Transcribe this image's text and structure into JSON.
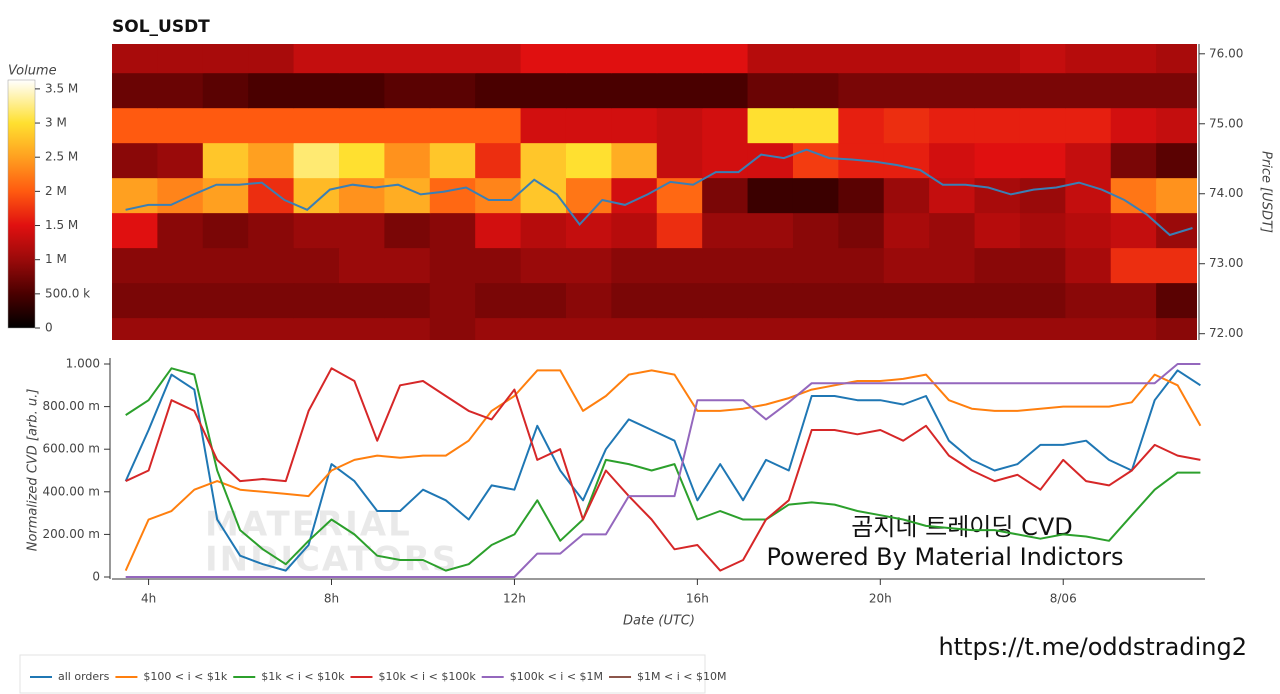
{
  "chart_data": [
    {
      "type": "heatmap",
      "title": "SOL_USDT",
      "ylabel": "Price [USDT]",
      "colorbar_title": "Volume",
      "xlim": [
        3.2,
        27.1
      ],
      "ylim": [
        71.91,
        76.14
      ],
      "yticks": [
        {
          "value": 72,
          "label": "72.00"
        },
        {
          "value": 73,
          "label": "73.00"
        },
        {
          "value": 74,
          "label": "74.00"
        },
        {
          "value": 75,
          "label": "75.00"
        },
        {
          "value": 76,
          "label": "76.00"
        }
      ],
      "x_bins": [
        3.2,
        4.2,
        5.2,
        6.2,
        7.2,
        8.2,
        9.2,
        10.2,
        11.2,
        12.2,
        13.2,
        14.2,
        15.2,
        16.2,
        17.2,
        18.2,
        19.2,
        20.2,
        21.2,
        22.2,
        23.2,
        24.2,
        25.2,
        26.2,
        27.2
      ],
      "y_bins": [
        71.73,
        72.23,
        72.73,
        73.23,
        73.73,
        74.23,
        74.73,
        75.23,
        75.73,
        76.23
      ],
      "z": [
        [
          1.0,
          1.0,
          1.0,
          1.0,
          1.0,
          1.0,
          1.0,
          0.9,
          1.0,
          1.0,
          1.0,
          1.0,
          1.0,
          1.0,
          1.0,
          1.0,
          1.0,
          1.0,
          1.0,
          1.0,
          1.0,
          1.0,
          1.0,
          0.9
        ],
        [
          0.8,
          0.8,
          0.8,
          0.8,
          0.8,
          0.8,
          0.8,
          0.9,
          0.8,
          0.8,
          0.9,
          0.8,
          0.8,
          0.8,
          0.8,
          0.8,
          0.8,
          0.8,
          0.8,
          0.8,
          0.8,
          0.9,
          0.9,
          0.6
        ],
        [
          0.9,
          0.9,
          0.9,
          0.9,
          0.9,
          1.0,
          1.0,
          0.9,
          0.9,
          1.0,
          1.0,
          0.9,
          0.9,
          0.9,
          0.9,
          0.9,
          0.9,
          1.0,
          1.0,
          0.9,
          0.9,
          1.1,
          1.7,
          1.7
        ],
        [
          1.5,
          0.9,
          0.8,
          0.9,
          1.0,
          1.0,
          0.8,
          0.9,
          1.4,
          1.2,
          1.3,
          1.2,
          1.7,
          1.0,
          1.0,
          0.9,
          0.8,
          1.1,
          1.0,
          1.2,
          1.1,
          1.2,
          1.3,
          1.0
        ],
        [
          2.5,
          2.3,
          2.5,
          1.7,
          2.7,
          2.4,
          2.6,
          2.1,
          2.3,
          2.8,
          2.2,
          1.4,
          2.1,
          0.8,
          0.4,
          0.4,
          0.6,
          1.0,
          1.3,
          1.1,
          1.0,
          1.3,
          2.2,
          2.4
        ],
        [
          0.9,
          1.0,
          2.8,
          2.5,
          3.2,
          3.0,
          2.4,
          2.8,
          1.7,
          2.8,
          3.0,
          2.6,
          1.3,
          1.4,
          1.4,
          1.8,
          1.6,
          1.6,
          1.4,
          1.5,
          1.5,
          1.3,
          0.8,
          0.6
        ],
        [
          2.0,
          2.0,
          2.0,
          2.0,
          2.0,
          2.0,
          2.0,
          2.0,
          2.0,
          1.4,
          1.4,
          1.4,
          1.3,
          1.4,
          3.0,
          3.0,
          1.6,
          1.7,
          1.6,
          1.6,
          1.6,
          1.6,
          1.4,
          1.3
        ],
        [
          0.7,
          0.7,
          0.6,
          0.5,
          0.5,
          0.5,
          0.6,
          0.6,
          0.5,
          0.5,
          0.5,
          0.5,
          0.5,
          0.5,
          0.7,
          0.7,
          0.8,
          0.8,
          0.8,
          0.8,
          0.8,
          0.8,
          0.8,
          0.8
        ],
        [
          1.1,
          1.1,
          1.1,
          1.1,
          1.3,
          1.3,
          1.3,
          1.3,
          1.3,
          1.5,
          1.5,
          1.5,
          1.5,
          1.5,
          1.2,
          1.2,
          1.2,
          1.2,
          1.2,
          1.2,
          1.3,
          1.2,
          1.2,
          1.1
        ]
      ],
      "zlim": [
        0,
        3.63
      ],
      "zticks": [
        0,
        {
          "value": 0.5,
          "label": "500.0 k"
        },
        {
          "value": 1,
          "label": "1 M"
        },
        {
          "value": 1.5,
          "label": "1.5 M"
        },
        {
          "value": 2,
          "label": "2 M"
        },
        {
          "value": 2.5,
          "label": "2.5 M"
        },
        {
          "value": 3,
          "label": "3 M"
        },
        {
          "value": 3.5,
          "label": "3.5 M"
        }
      ],
      "colorscale": [
        [
          0,
          "#000000"
        ],
        [
          0.5,
          "#4a0000"
        ],
        [
          1,
          "#9a0a0a"
        ],
        [
          1.5,
          "#e01010"
        ],
        [
          2,
          "#ff5a10"
        ],
        [
          2.5,
          "#ffa020"
        ],
        [
          3,
          "#ffe030"
        ],
        [
          3.63,
          "#ffffff"
        ]
      ],
      "x": [
        3.5,
        4,
        4.5,
        5,
        5.5,
        6,
        6.5,
        7,
        7.5,
        8,
        8.5,
        9,
        9.5,
        10,
        10.5,
        11,
        11.5,
        12,
        12.5,
        13,
        13.5,
        14,
        14.5,
        15,
        15.5,
        16,
        16.5,
        17,
        17.5,
        18,
        18.5,
        19,
        19.5,
        20,
        20.5,
        21,
        21.5,
        22,
        22.5,
        23,
        23.5,
        24,
        24.5,
        25,
        25.5,
        26,
        26.5,
        27
      ],
      "series": [
        {
          "color": "#3a7fb5",
          "values": [
            73.77,
            73.84,
            73.84,
            73.99,
            74.13,
            74.13,
            74.16,
            73.91,
            73.77,
            74.06,
            74.13,
            74.09,
            74.13,
            73.99,
            74.03,
            74.09,
            73.91,
            73.91,
            74.2,
            73.99,
            73.56,
            73.91,
            73.84,
            73.99,
            74.17,
            74.13,
            74.31,
            74.31,
            74.56,
            74.51,
            74.63,
            74.51,
            74.49,
            74.46,
            74.41,
            74.34,
            74.13,
            74.13,
            74.09,
            73.99,
            74.06,
            74.09,
            74.16,
            74.06,
            73.91,
            73.7,
            73.41,
            73.51
          ]
        }
      ]
    },
    {
      "type": "line",
      "xlabel": "Date (UTC)",
      "ylabel": "Normalized CVD [arb. u.]",
      "xlim": [
        3.2,
        27.1
      ],
      "ylim": [
        0,
        1
      ],
      "xticks": [
        {
          "value": 4,
          "label": "4h"
        },
        {
          "value": 8,
          "label": "8h"
        },
        {
          "value": 12,
          "label": "12h"
        },
        {
          "value": 16,
          "label": "16h"
        },
        {
          "value": 20,
          "label": "20h"
        },
        {
          "value": 24,
          "label": "8/06"
        }
      ],
      "yticks": [
        0,
        {
          "value": 0.2,
          "label": "200.00 m"
        },
        {
          "value": 0.4,
          "label": "400.00 m"
        },
        {
          "value": 0.6,
          "label": "600.00 m"
        },
        {
          "value": 0.8,
          "label": "800.00 m"
        },
        {
          "value": 1,
          "label": "1.000"
        }
      ],
      "x": [
        3.5,
        4,
        4.5,
        5,
        5.5,
        6,
        6.5,
        7,
        7.5,
        8,
        8.5,
        9,
        9.5,
        10,
        10.5,
        11,
        11.5,
        12,
        12.5,
        13,
        13.5,
        14,
        14.5,
        15,
        15.5,
        16,
        16.5,
        17,
        17.5,
        18,
        18.5,
        19,
        19.5,
        20,
        20.5,
        21,
        21.5,
        22,
        22.5,
        23,
        23.5,
        24,
        24.5,
        25,
        25.5,
        26,
        26.5,
        27
      ],
      "series": [
        {
          "name": "all orders",
          "color": "#1f77b4",
          "values": [
            0.45,
            0.69,
            0.95,
            0.88,
            0.27,
            0.1,
            0.06,
            0.03,
            0.15,
            0.53,
            0.45,
            0.31,
            0.31,
            0.41,
            0.36,
            0.27,
            0.43,
            0.41,
            0.71,
            0.5,
            0.36,
            0.6,
            0.74,
            0.69,
            0.64,
            0.36,
            0.53,
            0.36,
            0.55,
            0.5,
            0.85,
            0.85,
            0.83,
            0.83,
            0.81,
            0.85,
            0.64,
            0.55,
            0.5,
            0.53,
            0.62,
            0.62,
            0.64,
            0.55,
            0.5,
            0.83,
            0.97,
            0.9
          ]
        },
        {
          "name": "$100 < i < $1k",
          "color": "#ff7f0e",
          "values": [
            0.03,
            0.27,
            0.31,
            0.41,
            0.45,
            0.41,
            0.4,
            0.39,
            0.38,
            0.5,
            0.55,
            0.57,
            0.56,
            0.57,
            0.57,
            0.64,
            0.78,
            0.85,
            0.97,
            0.97,
            0.78,
            0.85,
            0.95,
            0.97,
            0.95,
            0.78,
            0.78,
            0.79,
            0.81,
            0.84,
            0.88,
            0.9,
            0.92,
            0.92,
            0.93,
            0.95,
            0.83,
            0.79,
            0.78,
            0.78,
            0.79,
            0.8,
            0.8,
            0.8,
            0.82,
            0.95,
            0.9,
            0.71
          ]
        },
        {
          "name": "$1k < i < $10k",
          "color": "#2ca02c",
          "values": [
            0.76,
            0.83,
            0.98,
            0.95,
            0.5,
            0.22,
            0.13,
            0.06,
            0.17,
            0.27,
            0.2,
            0.1,
            0.08,
            0.08,
            0.03,
            0.06,
            0.15,
            0.2,
            0.36,
            0.17,
            0.27,
            0.55,
            0.53,
            0.5,
            0.53,
            0.27,
            0.31,
            0.27,
            0.27,
            0.34,
            0.35,
            0.34,
            0.31,
            0.29,
            0.27,
            0.24,
            0.23,
            0.22,
            0.22,
            0.2,
            0.18,
            0.2,
            0.19,
            0.17,
            0.29,
            0.41,
            0.49,
            0.49
          ]
        },
        {
          "name": "$10k < i < $100k",
          "color": "#d62728",
          "values": [
            0.45,
            0.5,
            0.83,
            0.78,
            0.55,
            0.45,
            0.46,
            0.45,
            0.78,
            0.98,
            0.92,
            0.64,
            0.9,
            0.92,
            0.85,
            0.78,
            0.74,
            0.88,
            0.55,
            0.6,
            0.27,
            0.5,
            0.38,
            0.27,
            0.13,
            0.15,
            0.03,
            0.08,
            0.27,
            0.36,
            0.69,
            0.69,
            0.67,
            0.69,
            0.64,
            0.71,
            0.57,
            0.5,
            0.45,
            0.48,
            0.41,
            0.55,
            0.45,
            0.43,
            0.5,
            0.62,
            0.57,
            0.55
          ]
        },
        {
          "name": "$100k < i < $1M",
          "color": "#9467bd",
          "values": [
            0,
            0,
            0,
            0,
            0,
            0,
            0,
            0,
            0,
            0,
            0,
            0,
            0,
            0,
            0,
            0,
            0,
            0,
            0.11,
            0.11,
            0.2,
            0.2,
            0.38,
            0.38,
            0.38,
            0.83,
            0.83,
            0.83,
            0.74,
            0.82,
            0.91,
            0.91,
            0.91,
            0.91,
            0.91,
            0.91,
            0.91,
            0.91,
            0.91,
            0.91,
            0.91,
            0.91,
            0.91,
            0.91,
            0.91,
            0.91,
            1,
            1
          ]
        },
        {
          "name": "$1M < i < $10M",
          "color": "#8c564b",
          "values": [
            null,
            null,
            null,
            null,
            null,
            null,
            null,
            null,
            null,
            null,
            null,
            null,
            null,
            null,
            null,
            null,
            null,
            null,
            null,
            null,
            null,
            null,
            null,
            null,
            null,
            null,
            null,
            null,
            null,
            null,
            null,
            null,
            null,
            null,
            null,
            null,
            null,
            null,
            null,
            null,
            null,
            null,
            null,
            null,
            null,
            null,
            null,
            null
          ]
        }
      ],
      "watermark": [
        "MATERIAL",
        "INDICATORS"
      ],
      "annotations": [
        "곰지네 트레이딩 CVD",
        "Powered By Material Indictors",
        "https://t.me/oddstrading2"
      ]
    }
  ]
}
